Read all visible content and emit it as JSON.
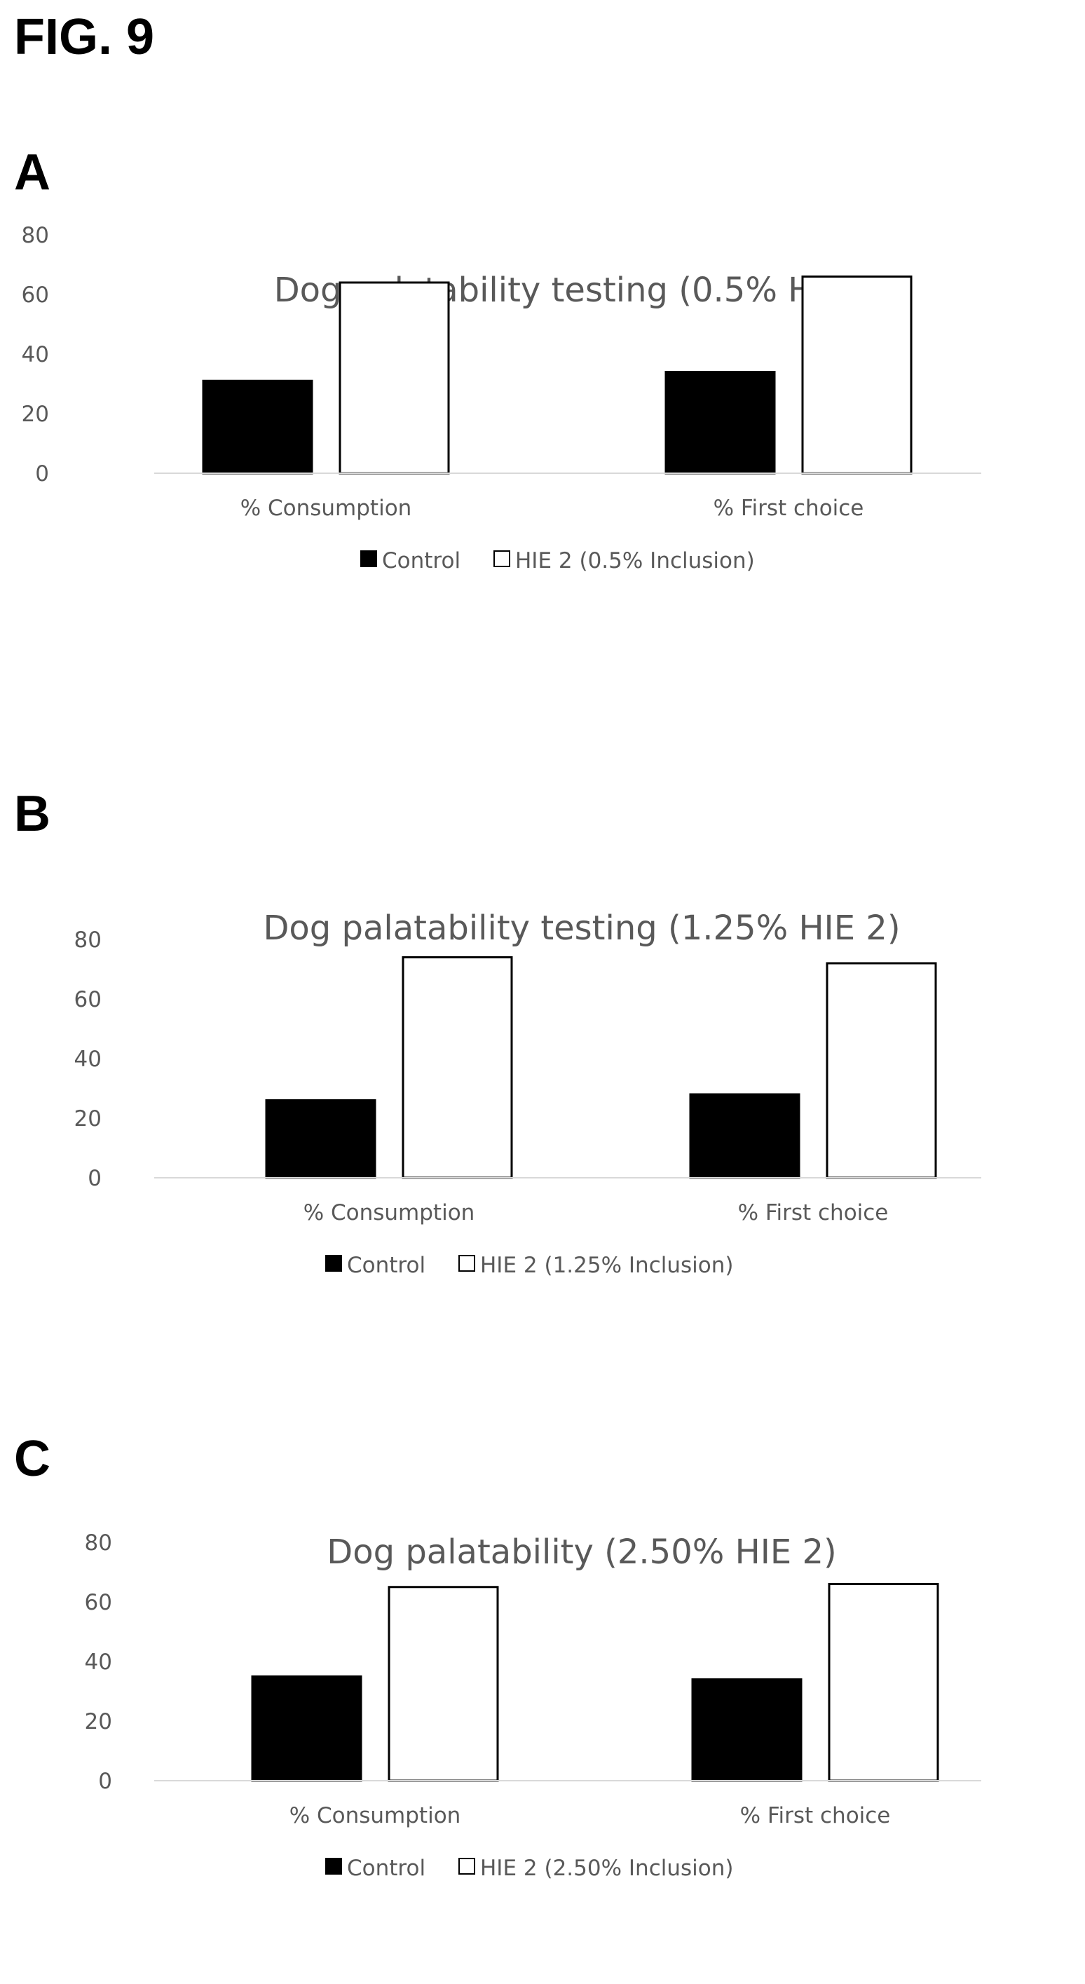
{
  "figure_title": "FIG. 9",
  "panels": [
    "A",
    "B",
    "C"
  ],
  "chart_data": [
    {
      "type": "bar",
      "title": "Dog palatability testing (0.5% HIE 2)",
      "categories": [
        "% Consumption",
        "% First choice"
      ],
      "series": [
        {
          "name": "Control",
          "values": [
            31,
            34
          ],
          "color": "#000000"
        },
        {
          "name": "HIE 2 (0.5% Inclusion)",
          "values": [
            64,
            66
          ],
          "color": "#ffffff"
        }
      ],
      "yticks": [
        "0",
        "20",
        "40",
        "60",
        "80"
      ],
      "ylim": [
        0,
        80
      ],
      "grid": false,
      "legend": "bottom"
    },
    {
      "type": "bar",
      "title": "Dog palatability testing (1.25% HIE 2)",
      "categories": [
        "% Consumption",
        "% First choice"
      ],
      "series": [
        {
          "name": "Control",
          "values": [
            26,
            28
          ],
          "color": "#000000"
        },
        {
          "name": "HIE 2 (1.25% Inclusion)",
          "values": [
            74,
            72
          ],
          "color": "#ffffff"
        }
      ],
      "yticks": [
        "0",
        "20",
        "40",
        "60",
        "80"
      ],
      "ylim": [
        0,
        80
      ],
      "grid": false,
      "legend": "bottom"
    },
    {
      "type": "bar",
      "title": "Dog palatability (2.50% HIE 2)",
      "categories": [
        "% Consumption",
        "% First choice"
      ],
      "series": [
        {
          "name": "Control",
          "values": [
            35,
            34
          ],
          "color": "#000000"
        },
        {
          "name": "HIE 2 (2.50% Inclusion)",
          "values": [
            65,
            66
          ],
          "color": "#ffffff"
        }
      ],
      "yticks": [
        "0",
        "20",
        "40",
        "60",
        "80"
      ],
      "ylim": [
        0,
        80
      ],
      "grid": false,
      "legend": "bottom"
    }
  ]
}
